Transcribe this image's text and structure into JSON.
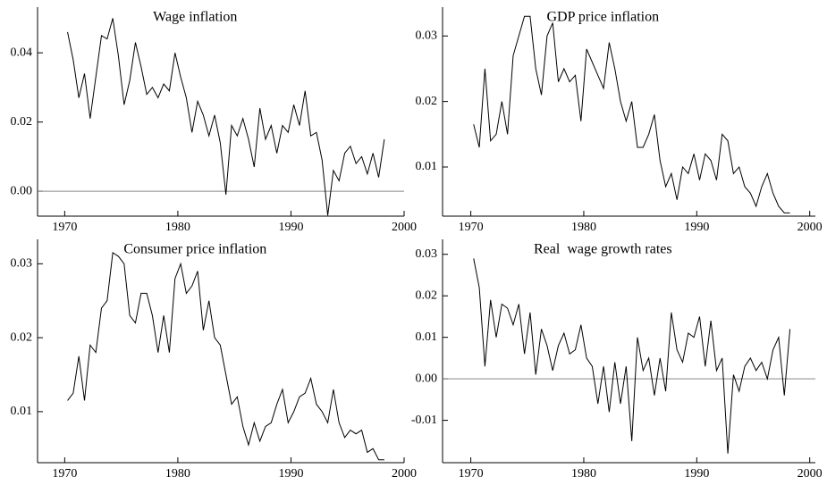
{
  "chart_data": [
    {
      "type": "line",
      "title": "Wage inflation",
      "x": [
        1970.25,
        1970.75,
        1971.25,
        1971.75,
        1972.25,
        1972.75,
        1973.25,
        1973.75,
        1974.25,
        1974.75,
        1975.25,
        1975.75,
        1976.25,
        1976.75,
        1977.25,
        1977.75,
        1978.25,
        1978.75,
        1979.25,
        1979.75,
        1980.25,
        1980.75,
        1981.25,
        1981.75,
        1982.25,
        1982.75,
        1983.25,
        1983.75,
        1984.25,
        1984.75,
        1985.25,
        1985.75,
        1986.25,
        1986.75,
        1987.25,
        1987.75,
        1988.25,
        1988.75,
        1989.25,
        1989.75,
        1990.25,
        1990.75,
        1991.25,
        1991.75,
        1992.25,
        1992.75,
        1993.25,
        1993.75,
        1994.25,
        1994.75,
        1995.25,
        1995.75,
        1996.25,
        1996.75,
        1997.25,
        1997.75,
        1998.25
      ],
      "values": [
        0.046,
        0.038,
        0.027,
        0.034,
        0.021,
        0.033,
        0.045,
        0.044,
        0.05,
        0.039,
        0.025,
        0.032,
        0.043,
        0.036,
        0.028,
        0.03,
        0.027,
        0.031,
        0.029,
        0.04,
        0.033,
        0.027,
        0.017,
        0.026,
        0.022,
        0.016,
        0.022,
        0.014,
        -0.001,
        0.019,
        0.016,
        0.021,
        0.015,
        0.007,
        0.024,
        0.015,
        0.019,
        0.011,
        0.019,
        0.017,
        0.025,
        0.019,
        0.029,
        0.016,
        0.017,
        0.009,
        -0.007,
        0.006,
        0.003,
        0.011,
        0.013,
        0.008,
        0.01,
        0.005,
        0.011,
        0.004,
        0.015
      ],
      "color": "#000000",
      "zero_line": true,
      "xlim": [
        1967.6,
        2000
      ],
      "xticks": [
        1970,
        1980,
        1990,
        2000
      ],
      "ylim": [
        -0.0072,
        0.0532
      ],
      "yticks": [
        {
          "value": 0,
          "label": "0.00"
        },
        0.02,
        0.04
      ]
    },
    {
      "type": "line",
      "title": "GDP price inflation",
      "x": [
        1970.25,
        1970.75,
        1971.25,
        1971.75,
        1972.25,
        1972.75,
        1973.25,
        1973.75,
        1974.25,
        1974.75,
        1975.25,
        1975.75,
        1976.25,
        1976.75,
        1977.25,
        1977.75,
        1978.25,
        1978.75,
        1979.25,
        1979.75,
        1980.25,
        1980.75,
        1981.25,
        1981.75,
        1982.25,
        1982.75,
        1983.25,
        1983.75,
        1984.25,
        1984.75,
        1985.25,
        1985.75,
        1986.25,
        1986.75,
        1987.25,
        1987.75,
        1988.25,
        1988.75,
        1989.25,
        1989.75,
        1990.25,
        1990.75,
        1991.25,
        1991.75,
        1992.25,
        1992.75,
        1993.25,
        1993.75,
        1994.25,
        1994.75,
        1995.25,
        1995.75,
        1996.25,
        1996.75,
        1997.25,
        1997.75,
        1998.25
      ],
      "values": [
        0.0165,
        0.013,
        0.025,
        0.014,
        0.015,
        0.02,
        0.015,
        0.027,
        0.03,
        0.033,
        0.033,
        0.025,
        0.021,
        0.03,
        0.032,
        0.023,
        0.025,
        0.023,
        0.024,
        0.017,
        0.028,
        0.026,
        0.024,
        0.022,
        0.029,
        0.025,
        0.02,
        0.017,
        0.02,
        0.013,
        0.013,
        0.015,
        0.018,
        0.011,
        0.007,
        0.009,
        0.005,
        0.01,
        0.009,
        0.012,
        0.008,
        0.012,
        0.011,
        0.008,
        0.015,
        0.014,
        0.009,
        0.01,
        0.007,
        0.006,
        0.004,
        0.007,
        0.009,
        0.006,
        0.004,
        0.003,
        0.003
      ],
      "color": "#000000",
      "zero_line": false,
      "xlim": [
        1967.5,
        2000.5
      ],
      "xticks": [
        1970,
        1980,
        1990,
        2000
      ],
      "ylim": [
        0.0025,
        0.0344
      ],
      "yticks": [
        0.01,
        0.02,
        0.03
      ]
    },
    {
      "type": "line",
      "title": "Consumer price inflation",
      "x": [
        1970.25,
        1970.75,
        1971.25,
        1971.75,
        1972.25,
        1972.75,
        1973.25,
        1973.75,
        1974.25,
        1974.75,
        1975.25,
        1975.75,
        1976.25,
        1976.75,
        1977.25,
        1977.75,
        1978.25,
        1978.75,
        1979.25,
        1979.75,
        1980.25,
        1980.75,
        1981.25,
        1981.75,
        1982.25,
        1982.75,
        1983.25,
        1983.75,
        1984.25,
        1984.75,
        1985.25,
        1985.75,
        1986.25,
        1986.75,
        1987.25,
        1987.75,
        1988.25,
        1988.75,
        1989.25,
        1989.75,
        1990.25,
        1990.75,
        1991.25,
        1991.75,
        1992.25,
        1992.75,
        1993.25,
        1993.75,
        1994.25,
        1994.75,
        1995.25,
        1995.75,
        1996.25,
        1996.75,
        1997.25,
        1997.75,
        1998.25
      ],
      "values": [
        0.0115,
        0.0125,
        0.0175,
        0.0115,
        0.019,
        0.018,
        0.024,
        0.025,
        0.0315,
        0.031,
        0.03,
        0.023,
        0.022,
        0.026,
        0.026,
        0.023,
        0.018,
        0.023,
        0.018,
        0.028,
        0.03,
        0.026,
        0.027,
        0.029,
        0.021,
        0.025,
        0.02,
        0.019,
        0.015,
        0.011,
        0.012,
        0.008,
        0.0055,
        0.0085,
        0.006,
        0.008,
        0.0085,
        0.011,
        0.013,
        0.0085,
        0.01,
        0.012,
        0.0125,
        0.0145,
        0.011,
        0.01,
        0.0085,
        0.013,
        0.0085,
        0.0065,
        0.0075,
        0.007,
        0.0075,
        0.0045,
        0.005,
        0.0035,
        0.0035
      ],
      "color": "#000000",
      "zero_line": false,
      "xlim": [
        1967.6,
        2000
      ],
      "xticks": [
        1970,
        1980,
        1990,
        2000
      ],
      "ylim": [
        0.0031,
        0.0333
      ],
      "yticks": [
        0.01,
        0.02,
        0.03
      ]
    },
    {
      "type": "line",
      "title": "Real  wage growth rates",
      "x": [
        1970.25,
        1970.75,
        1971.25,
        1971.75,
        1972.25,
        1972.75,
        1973.25,
        1973.75,
        1974.25,
        1974.75,
        1975.25,
        1975.75,
        1976.25,
        1976.75,
        1977.25,
        1977.75,
        1978.25,
        1978.75,
        1979.25,
        1979.75,
        1980.25,
        1980.75,
        1981.25,
        1981.75,
        1982.25,
        1982.75,
        1983.25,
        1983.75,
        1984.25,
        1984.75,
        1985.25,
        1985.75,
        1986.25,
        1986.75,
        1987.25,
        1987.75,
        1988.25,
        1988.75,
        1989.25,
        1989.75,
        1990.25,
        1990.75,
        1991.25,
        1991.75,
        1992.25,
        1992.75,
        1993.25,
        1993.75,
        1994.25,
        1994.75,
        1995.25,
        1995.75,
        1996.25,
        1996.75,
        1997.25,
        1997.75,
        1998.25
      ],
      "values": [
        0.029,
        0.022,
        0.003,
        0.019,
        0.01,
        0.018,
        0.017,
        0.013,
        0.018,
        0.006,
        0.016,
        0.001,
        0.012,
        0.008,
        0.002,
        0.008,
        0.011,
        0.006,
        0.007,
        0.013,
        0.005,
        0.003,
        -0.006,
        0.003,
        -0.008,
        0.004,
        -0.006,
        0.003,
        -0.015,
        0.01,
        0.002,
        0.005,
        -0.004,
        0.005,
        -0.003,
        0.016,
        0.007,
        0.004,
        0.011,
        0.01,
        0.015,
        0.003,
        0.014,
        0.002,
        0.005,
        -0.018,
        0.001,
        -0.003,
        0.003,
        0.005,
        0.002,
        0.004,
        0.0,
        0.007,
        0.01,
        -0.004,
        0.012
      ],
      "color": "#000000",
      "zero_line": true,
      "xlim": [
        1967.5,
        2000.5
      ],
      "xticks": [
        1970,
        1980,
        1990,
        2000
      ],
      "ylim": [
        -0.0202,
        0.0336
      ],
      "yticks": [
        -0.01,
        {
          "value": 0,
          "label": "0.00"
        },
        0.01,
        0.02,
        0.03
      ]
    }
  ]
}
